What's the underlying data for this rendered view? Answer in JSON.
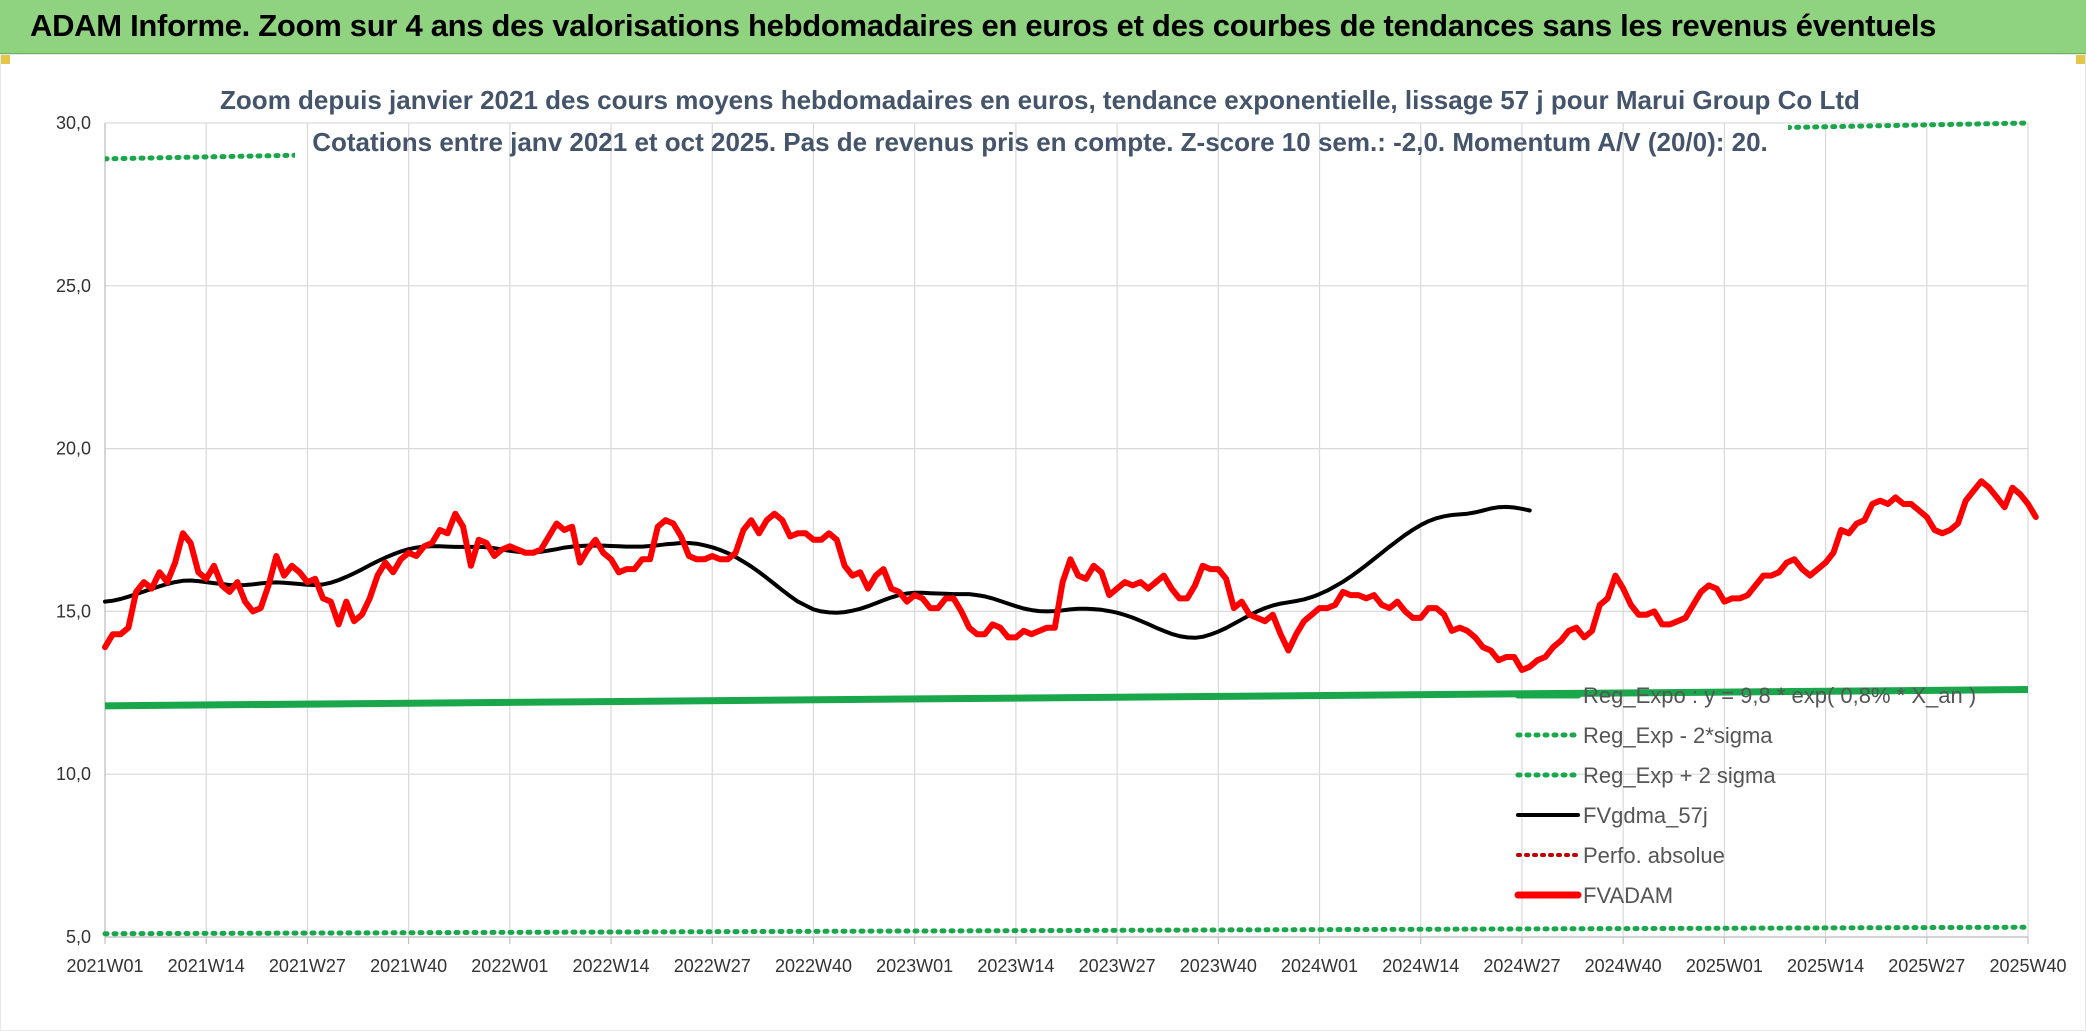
{
  "header": {
    "title": "ADAM Informe. Zoom sur 4 ans des valorisations hebdomadaires en euros et des courbes de tendances sans les revenus éventuels"
  },
  "colors": {
    "banner": "#8fd27f",
    "grid": "#d9d9d9",
    "fvadam": "#ff0000",
    "fvgdma": "#000000",
    "reg_expo": "#1aa64a",
    "sigma": "#1aa64a",
    "perfo": "#c00000",
    "title_text": "#44546a"
  },
  "chart_data": {
    "type": "line",
    "title": "Zoom depuis janvier 2021 des cours moyens hebdomadaires en euros, tendance exponentielle, lissage 57 j pour Marui Group Co Ltd",
    "subtitle": "Cotations entre janv 2021 et oct 2025. Pas de revenus pris en compte. Z-score 10 sem.: -2,0. Momentum A/V (20/0): 20.",
    "xlabel": "",
    "ylabel": "",
    "ylim": [
      5,
      30
    ],
    "y_ticks": [
      "5,0",
      "10,0",
      "15,0",
      "20,0",
      "25,0",
      "30,0"
    ],
    "x_ticks": [
      "2021W01",
      "2021W14",
      "2021W27",
      "2021W40",
      "2022W01",
      "2022W14",
      "2022W27",
      "2022W40",
      "2023W01",
      "2023W14",
      "2023W27",
      "2023W40",
      "2024W01",
      "2024W14",
      "2024W27",
      "2024W40",
      "2025W01",
      "2025W14",
      "2025W27",
      "2025W40"
    ],
    "grid": true,
    "legend_position": "bottom-right inside plot",
    "legend": [
      {
        "label": "Reg_Expo : y = 9,8 * exp( 0,8% * X_an )",
        "style": "solid-green-thick"
      },
      {
        "label": "Reg_Exp - 2*sigma",
        "style": "dotted-green"
      },
      {
        "label": "Reg_Exp + 2 sigma",
        "style": "dotted-green"
      },
      {
        "label": "FVgdma_57j",
        "style": "solid-black"
      },
      {
        "label": "Perfo. absolue",
        "style": "dotted-red"
      },
      {
        "label": "FVADAM",
        "style": "solid-red-thick"
      }
    ],
    "series": [
      {
        "name": "FVADAM",
        "x_start": "2021W01",
        "step": "1 week",
        "values": [
          13.9,
          14.3,
          14.3,
          14.5,
          15.6,
          15.9,
          15.7,
          16.2,
          15.9,
          16.5,
          17.4,
          17.1,
          16.2,
          16.0,
          16.4,
          15.8,
          15.6,
          15.9,
          15.3,
          15.0,
          15.1,
          15.8,
          16.7,
          16.1,
          16.4,
          16.2,
          15.9,
          16.0,
          15.4,
          15.3,
          14.6,
          15.3,
          14.7,
          14.9,
          15.4,
          16.1,
          16.5,
          16.2,
          16.6,
          16.8,
          16.7,
          17.0,
          17.1,
          17.5,
          17.4,
          18.0,
          17.6,
          16.4,
          17.2,
          17.1,
          16.7,
          16.9,
          17.0,
          16.9,
          16.8,
          16.8,
          16.9,
          17.3,
          17.7,
          17.5,
          17.6,
          16.5,
          16.9,
          17.2,
          16.8,
          16.6,
          16.2,
          16.3,
          16.3,
          16.6,
          16.6,
          17.6,
          17.8,
          17.7,
          17.3,
          16.7,
          16.6,
          16.6,
          16.7,
          16.6,
          16.6,
          16.8,
          17.5,
          17.8,
          17.4,
          17.8,
          18.0,
          17.8,
          17.3,
          17.4,
          17.4,
          17.2,
          17.2,
          17.4,
          17.2,
          16.4,
          16.1,
          16.2,
          15.7,
          16.1,
          16.3,
          15.7,
          15.6,
          15.3,
          15.5,
          15.4,
          15.1,
          15.1,
          15.4,
          15.4,
          15.0,
          14.5,
          14.3,
          14.3,
          14.6,
          14.5,
          14.2,
          14.2,
          14.4,
          14.3,
          14.4,
          14.5,
          14.5,
          15.9,
          16.6,
          16.1,
          16.0,
          16.4,
          16.2,
          15.5,
          15.7,
          15.9,
          15.8,
          15.9,
          15.7,
          15.9,
          16.1,
          15.7,
          15.4,
          15.4,
          15.8,
          16.4,
          16.3,
          16.3,
          16.0,
          15.1,
          15.3,
          14.9,
          14.8,
          14.7,
          14.9,
          14.3,
          13.8,
          14.3,
          14.7,
          14.9,
          15.1,
          15.1,
          15.2,
          15.6,
          15.5,
          15.5,
          15.4,
          15.5,
          15.2,
          15.1,
          15.3,
          15.0,
          14.8,
          14.8,
          15.1,
          15.1,
          14.9,
          14.4,
          14.5,
          14.4,
          14.2,
          13.9,
          13.8,
          13.5,
          13.6,
          13.6,
          13.2,
          13.3,
          13.5,
          13.6,
          13.9,
          14.1,
          14.4,
          14.5,
          14.2,
          14.4,
          15.2,
          15.4,
          16.1,
          15.7,
          15.2,
          14.9,
          14.9,
          15.0,
          14.6,
          14.6,
          14.7,
          14.8,
          15.2,
          15.6,
          15.8,
          15.7,
          15.3,
          15.4,
          15.4,
          15.5,
          15.8,
          16.1,
          16.1,
          16.2,
          16.5,
          16.6,
          16.3,
          16.1,
          16.3,
          16.5,
          16.8,
          17.5,
          17.4,
          17.7,
          17.8,
          18.3,
          18.4,
          18.3,
          18.5,
          18.3,
          18.3,
          18.1,
          17.9,
          17.5,
          17.4,
          17.5,
          17.7,
          18.4,
          18.7,
          19.0,
          18.8,
          18.5,
          18.2,
          18.8,
          18.6,
          18.3,
          17.9
        ]
      },
      {
        "name": "FVgdma_57j",
        "x_start": "2021W01",
        "step": "1 week",
        "values": [
          15.3,
          15.33,
          15.38,
          15.45,
          15.53,
          15.61,
          15.69,
          15.77,
          15.84,
          15.9,
          15.94,
          15.95,
          15.93,
          15.9,
          15.87,
          15.84,
          15.81,
          15.8,
          15.81,
          15.83,
          15.86,
          15.88,
          15.89,
          15.88,
          15.86,
          15.84,
          15.82,
          15.81,
          15.83,
          15.88,
          15.96,
          16.06,
          16.17,
          16.29,
          16.42,
          16.54,
          16.65,
          16.75,
          16.84,
          16.91,
          16.96,
          16.99,
          17.0,
          17.0,
          16.99,
          16.98,
          16.98,
          16.98,
          16.98,
          16.97,
          16.94,
          16.9,
          16.86,
          16.83,
          16.81,
          16.81,
          16.83,
          16.87,
          16.91,
          16.96,
          16.99,
          17.01,
          17.02,
          17.02,
          17.02,
          17.01,
          17.0,
          16.99,
          16.99,
          16.99,
          17.01,
          17.03,
          17.06,
          17.08,
          17.1,
          17.1,
          17.08,
          17.03,
          16.97,
          16.89,
          16.79,
          16.67,
          16.53,
          16.38,
          16.21,
          16.03,
          15.84,
          15.65,
          15.47,
          15.3,
          15.18,
          15.06,
          15.0,
          14.97,
          14.96,
          14.98,
          15.02,
          15.08,
          15.16,
          15.25,
          15.34,
          15.43,
          15.5,
          15.55,
          15.57,
          15.57,
          15.56,
          15.55,
          15.54,
          15.53,
          15.53,
          15.53,
          15.5,
          15.46,
          15.4,
          15.32,
          15.24,
          15.16,
          15.09,
          15.04,
          15.01,
          15.0,
          15.01,
          15.03,
          15.06,
          15.08,
          15.08,
          15.07,
          15.05,
          15.01,
          14.96,
          14.89,
          14.81,
          14.71,
          14.61,
          14.5,
          14.4,
          14.31,
          14.24,
          14.2,
          14.19,
          14.22,
          14.29,
          14.38,
          14.49,
          14.62,
          14.75,
          14.88,
          15.0,
          15.1,
          15.18,
          15.24,
          15.28,
          15.32,
          15.37,
          15.44,
          15.53,
          15.64,
          15.77,
          15.91,
          16.07,
          16.24,
          16.42,
          16.61,
          16.8,
          16.99,
          17.17,
          17.35,
          17.51,
          17.65,
          17.77,
          17.86,
          17.92,
          17.96,
          17.98,
          18.0,
          18.04,
          18.1,
          18.16,
          18.2,
          18.21,
          18.19,
          18.15,
          18.1
        ]
      },
      {
        "name": "Reg_Expo : y = 9,8 * exp( 0,8% * X_an )",
        "points": [
          [
            "2021W01",
            12.1
          ],
          [
            "2025W40",
            12.6
          ]
        ]
      },
      {
        "name": "Reg_Exp - 2*sigma",
        "points": [
          [
            "2021W01",
            5.1
          ],
          [
            "2025W40",
            5.3
          ]
        ]
      },
      {
        "name": "Reg_Exp + 2 sigma",
        "points": [
          [
            "2021W01",
            28.9
          ],
          [
            "2025W40",
            30.0
          ]
        ],
        "note": "visible only below ~29 and above subtitle area"
      }
    ]
  }
}
